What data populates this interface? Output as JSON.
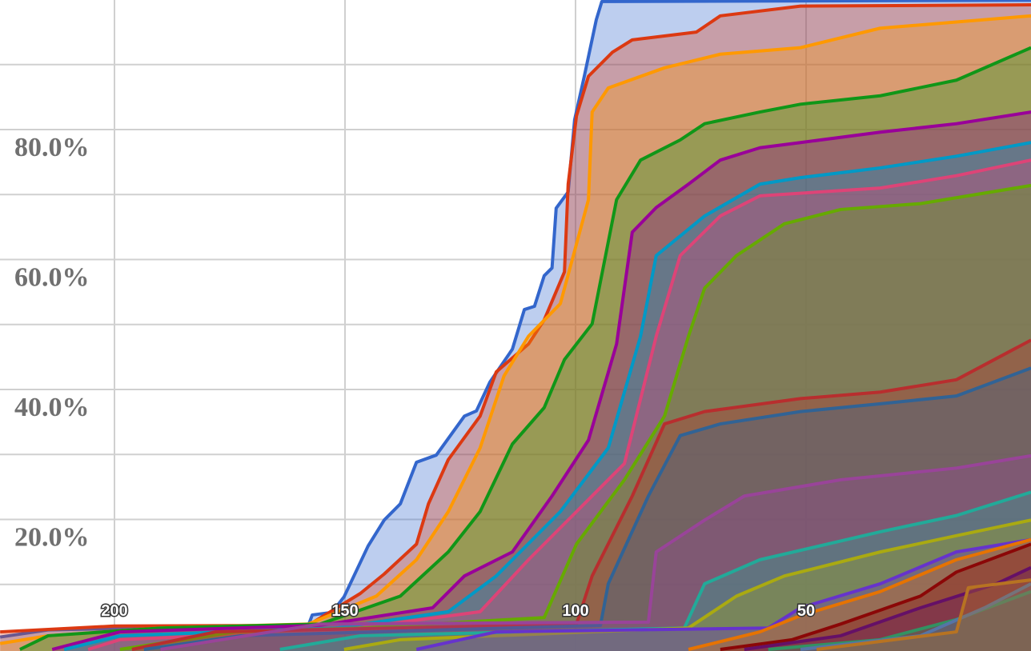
{
  "chart_data": {
    "type": "area",
    "title": "",
    "xlabel": "",
    "ylabel": "",
    "x_reversed": true,
    "xlim": [
      225,
      0
    ],
    "ylim": [
      0,
      100
    ],
    "x_ticks": [
      "200",
      "150",
      "100",
      "50"
    ],
    "x_tick_values": [
      200,
      150,
      100,
      50
    ],
    "y_ticks": [
      "20.0%",
      "40.0%",
      "60.0%",
      "80.0%"
    ],
    "y_tick_values": [
      20,
      40,
      60,
      80
    ],
    "grid": true,
    "grid_y_step": 10,
    "series": [
      {
        "color": "#3366cc",
        "points": [
          [
            224.8,
            1.9
          ],
          [
            214.4,
            3.0
          ],
          [
            200,
            3.2
          ],
          [
            184.9,
            3.5
          ],
          [
            158,
            3.6
          ],
          [
            157.1,
            5.3
          ],
          [
            152.8,
            5.7
          ],
          [
            150.2,
            8.1
          ],
          [
            145,
            15.9
          ],
          [
            141.5,
            19.9
          ],
          [
            138,
            22.4
          ],
          [
            134.5,
            28.8
          ],
          [
            130.2,
            29.9
          ],
          [
            124.1,
            35.9
          ],
          [
            121.5,
            36.7
          ],
          [
            118.6,
            41.1
          ],
          [
            113.7,
            46.2
          ],
          [
            111.1,
            52.3
          ],
          [
            108.9,
            52.8
          ],
          [
            106.8,
            57.5
          ],
          [
            105.1,
            58.7
          ],
          [
            104.2,
            67.9
          ],
          [
            101.6,
            70.4
          ],
          [
            100.2,
            81.5
          ],
          [
            98.1,
            88.2
          ],
          [
            95.5,
            96.9
          ],
          [
            94.3,
            99.7
          ],
          [
            1.2,
            99.9
          ]
        ]
      },
      {
        "color": "#dc3912",
        "points": [
          [
            224.8,
            2.7
          ],
          [
            200,
            3.6
          ],
          [
            158,
            3.7
          ],
          [
            146.7,
            8.6
          ],
          [
            141.5,
            11.6
          ],
          [
            134.5,
            16.2
          ],
          [
            131.9,
            22.4
          ],
          [
            127.6,
            29.2
          ],
          [
            120.7,
            35.9
          ],
          [
            117.2,
            42.7
          ],
          [
            110.2,
            47
          ],
          [
            106.8,
            50.7
          ],
          [
            102.4,
            58.1
          ],
          [
            101.6,
            71.6
          ],
          [
            99.8,
            82.1
          ],
          [
            97.2,
            88.2
          ],
          [
            92,
            91.9
          ],
          [
            87.7,
            93.8
          ],
          [
            73.8,
            95
          ],
          [
            68.6,
            97.5
          ],
          [
            51.2,
            99
          ],
          [
            1.2,
            99.2
          ]
        ]
      },
      {
        "color": "#ff9900",
        "points": [
          [
            224.8,
            0.9
          ],
          [
            214.4,
            2.1
          ],
          [
            190,
            3.3
          ],
          [
            158,
            3.9
          ],
          [
            143.2,
            8.2
          ],
          [
            134.5,
            13.8
          ],
          [
            127.6,
            21.2
          ],
          [
            120.7,
            31
          ],
          [
            115.5,
            42.1
          ],
          [
            110.2,
            48.2
          ],
          [
            103.3,
            53.2
          ],
          [
            97.2,
            69.2
          ],
          [
            96.4,
            82.7
          ],
          [
            92.9,
            86.4
          ],
          [
            80.7,
            89.5
          ],
          [
            68.6,
            91.6
          ],
          [
            51.2,
            92.6
          ],
          [
            33.9,
            95.6
          ],
          [
            1.2,
            97.5
          ]
        ]
      },
      {
        "color": "#109618",
        "points": [
          [
            220.5,
            0
          ],
          [
            214.4,
            2.1
          ],
          [
            190,
            3.3
          ],
          [
            155.4,
            3.9
          ],
          [
            138,
            8.2
          ],
          [
            127.6,
            15
          ],
          [
            120.7,
            21.2
          ],
          [
            113.7,
            31.6
          ],
          [
            106.8,
            37.2
          ],
          [
            102.4,
            44.6
          ],
          [
            96.4,
            50.1
          ],
          [
            91.1,
            69.2
          ],
          [
            85.9,
            75.3
          ],
          [
            77.3,
            78.4
          ],
          [
            72,
            80.9
          ],
          [
            60,
            82.7
          ],
          [
            51.2,
            83.9
          ],
          [
            33.9,
            85.2
          ],
          [
            17.4,
            87.6
          ],
          [
            1.2,
            92.6
          ]
        ]
      },
      {
        "color": "#990099",
        "points": [
          [
            213.5,
            0
          ],
          [
            198.8,
            2.7
          ],
          [
            155.4,
            3.7
          ],
          [
            131,
            6.4
          ],
          [
            124.1,
            11.3
          ],
          [
            113.7,
            15
          ],
          [
            105.1,
            23.6
          ],
          [
            97.2,
            32.2
          ],
          [
            91.1,
            47
          ],
          [
            87.7,
            64.2
          ],
          [
            82.5,
            68
          ],
          [
            75.5,
            71.6
          ],
          [
            68.6,
            75.3
          ],
          [
            60,
            77.2
          ],
          [
            51.2,
            78
          ],
          [
            33.9,
            79.6
          ],
          [
            17.4,
            80.9
          ],
          [
            1.2,
            82.7
          ]
        ]
      },
      {
        "color": "#0099c6",
        "points": [
          [
            210.9,
            0
          ],
          [
            198.8,
            2.1
          ],
          [
            151.9,
            3.3
          ],
          [
            127.6,
            5.8
          ],
          [
            117.2,
            11.3
          ],
          [
            103.3,
            21.2
          ],
          [
            92.9,
            31
          ],
          [
            85.9,
            48.2
          ],
          [
            82.5,
            60.6
          ],
          [
            72,
            66.7
          ],
          [
            60,
            71.6
          ],
          [
            51.2,
            72.6
          ],
          [
            33.9,
            74.1
          ],
          [
            17.4,
            75.9
          ],
          [
            1.2,
            78
          ]
        ]
      },
      {
        "color": "#dd4477",
        "points": [
          [
            205.7,
            0
          ],
          [
            198.8,
            1.5
          ],
          [
            150.2,
            3
          ],
          [
            120.7,
            5.8
          ],
          [
            110.2,
            13.8
          ],
          [
            99.8,
            21.2
          ],
          [
            89.4,
            28.6
          ],
          [
            82.5,
            48.2
          ],
          [
            77.3,
            60.6
          ],
          [
            68.6,
            66.7
          ],
          [
            60,
            69.8
          ],
          [
            33.9,
            71
          ],
          [
            17.4,
            72.9
          ],
          [
            1.2,
            75.3
          ]
        ]
      },
      {
        "color": "#66aa00",
        "points": [
          [
            198.8,
            0
          ],
          [
            173.8,
            2.7
          ],
          [
            146.7,
            3.3
          ],
          [
            106.8,
            4.9
          ],
          [
            99.8,
            16.2
          ],
          [
            89.4,
            26.1
          ],
          [
            80.7,
            35.9
          ],
          [
            75.5,
            48.2
          ],
          [
            72,
            55.6
          ],
          [
            65.1,
            60.6
          ],
          [
            54.7,
            65.5
          ],
          [
            42.5,
            67.7
          ],
          [
            25.2,
            68.6
          ],
          [
            1.2,
            71.4
          ]
        ]
      },
      {
        "color": "#b82e2e",
        "points": [
          [
            196.2,
            0
          ],
          [
            178,
            2.7
          ],
          [
            99.8,
            3.9
          ],
          [
            96.4,
            11.3
          ],
          [
            87.7,
            23.6
          ],
          [
            80.7,
            34.7
          ],
          [
            72,
            36.6
          ],
          [
            51.2,
            38.6
          ],
          [
            33.9,
            39.6
          ],
          [
            17.4,
            41.5
          ],
          [
            1.2,
            47.6
          ]
        ]
      },
      {
        "color": "#316395",
        "points": [
          [
            193.6,
            0
          ],
          [
            172.7,
            2.1
          ],
          [
            94.6,
            3.7
          ],
          [
            92.9,
            10.1
          ],
          [
            84.2,
            23.6
          ],
          [
            77.3,
            32.9
          ],
          [
            68.6,
            34.7
          ],
          [
            51.2,
            36.6
          ],
          [
            33.9,
            37.8
          ],
          [
            17.4,
            39
          ],
          [
            1.2,
            43.3
          ]
        ]
      },
      {
        "color": "#994499",
        "points": [
          [
            190,
            0
          ],
          [
            155.4,
            3.9
          ],
          [
            84.2,
            4.2
          ],
          [
            82.5,
            15
          ],
          [
            72,
            19.9
          ],
          [
            63.4,
            23.6
          ],
          [
            42.5,
            26.1
          ],
          [
            17.4,
            27.9
          ],
          [
            1.2,
            29.8
          ]
        ]
      },
      {
        "color": "#22aa99",
        "points": [
          [
            164.1,
            0
          ],
          [
            146.7,
            2.1
          ],
          [
            76.4,
            3.3
          ],
          [
            72,
            10.1
          ],
          [
            60,
            13.8
          ],
          [
            33.9,
            18.1
          ],
          [
            17.4,
            20.6
          ],
          [
            1.2,
            24.2
          ]
        ]
      },
      {
        "color": "#aaaa11",
        "points": [
          [
            150.2,
            0
          ],
          [
            138,
            1.5
          ],
          [
            75.5,
            3.3
          ],
          [
            65.1,
            8.2
          ],
          [
            54.7,
            11.3
          ],
          [
            33.9,
            15
          ],
          [
            17.4,
            17.5
          ],
          [
            1.2,
            19.9
          ]
        ]
      },
      {
        "color": "#6633cc",
        "points": [
          [
            134.5,
            0
          ],
          [
            117.2,
            2.7
          ],
          [
            58.2,
            3.3
          ],
          [
            51.2,
            6.4
          ],
          [
            33.9,
            10.1
          ],
          [
            17.4,
            15
          ],
          [
            1.2,
            16.9
          ]
        ]
      },
      {
        "color": "#e67300",
        "points": [
          [
            75.5,
            0
          ],
          [
            60,
            2.7
          ],
          [
            51.2,
            5.2
          ],
          [
            33.9,
            8.9
          ],
          [
            17.4,
            13.8
          ],
          [
            1.2,
            16.9
          ]
        ]
      },
      {
        "color": "#8b0707",
        "points": [
          [
            68.6,
            0
          ],
          [
            53,
            1.5
          ],
          [
            42.5,
            3.9
          ],
          [
            25.2,
            8.2
          ],
          [
            17.4,
            11.9
          ],
          [
            1.2,
            16.2
          ]
        ]
      },
      {
        "color": "#651067",
        "points": [
          [
            63.4,
            0
          ],
          [
            42.5,
            2.1
          ],
          [
            25.2,
            6.4
          ],
          [
            8.7,
            10.1
          ],
          [
            1.2,
            12.6
          ]
        ]
      },
      {
        "color": "#329262",
        "points": [
          [
            58.2,
            0
          ],
          [
            33.9,
            1.5
          ],
          [
            17.4,
            4.6
          ],
          [
            1.2,
            8.9
          ]
        ]
      },
      {
        "color": "#5574a6",
        "points": [
          [
            51.2,
            0
          ],
          [
            25.2,
            2.1
          ],
          [
            11.3,
            6.4
          ],
          [
            1.2,
            10.1
          ]
        ]
      },
      {
        "color": "#b77322",
        "points": [
          [
            47.7,
            0
          ],
          [
            17.4,
            2.7
          ],
          [
            14.8,
            9.5
          ],
          [
            1.2,
            10.7
          ]
        ]
      }
    ]
  }
}
